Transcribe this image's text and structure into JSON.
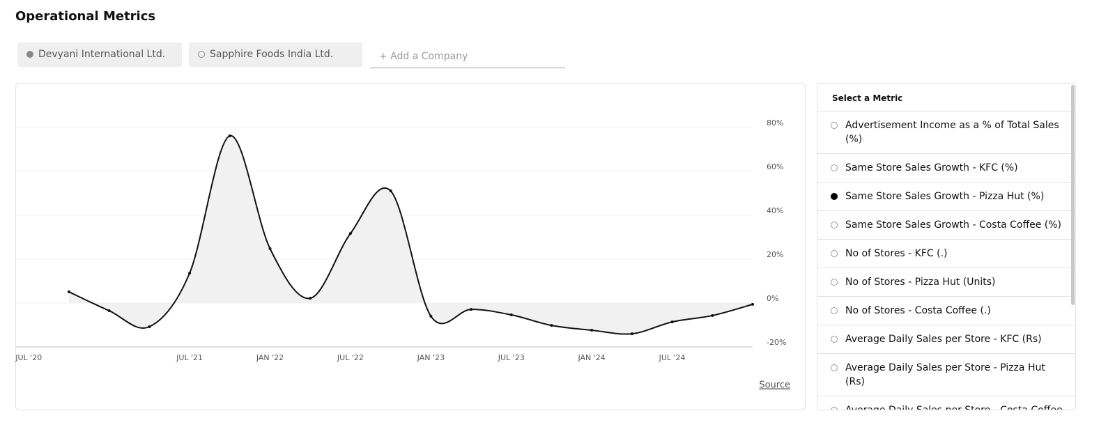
{
  "header": {
    "title": "Operational Metrics"
  },
  "companies": [
    {
      "name": "Devyani International Ltd.",
      "selected": true
    },
    {
      "name": "Sapphire Foods India Ltd.",
      "selected": false
    }
  ],
  "add_company": "+ Add a Company",
  "chart_data": {
    "type": "line",
    "color": "#111111",
    "area_color": "#f1f1f1",
    "x": [
      "2020-10",
      "2021-01",
      "2021-04",
      "2021-07",
      "2021-10",
      "2022-01",
      "2022-04",
      "2022-07",
      "2022-10",
      "2023-01",
      "2023-04",
      "2023-07",
      "2023-10",
      "2024-01",
      "2024-04",
      "2024-07",
      "2024-10",
      "2025-01"
    ],
    "values": [
      5.1,
      -3.5,
      -10.8,
      13.6,
      76.2,
      24.8,
      2.2,
      31.7,
      51.1,
      -6.0,
      -2.9,
      -5.4,
      -10.2,
      -12.4,
      -14.0,
      -8.6,
      -5.7,
      -0.6
    ],
    "xlim": [
      "2020-06",
      "2025-01"
    ],
    "xticks": [
      {
        "value": "2020-07",
        "label": "JUL '20"
      },
      {
        "value": "2021-07",
        "label": "JUL '21"
      },
      {
        "value": "2022-01",
        "label": "JAN '22"
      },
      {
        "value": "2022-07",
        "label": "JUL '22"
      },
      {
        "value": "2023-01",
        "label": "JAN '23"
      },
      {
        "value": "2023-07",
        "label": "JUL '23"
      },
      {
        "value": "2024-01",
        "label": "JAN '24"
      },
      {
        "value": "2024-07",
        "label": "JUL '24"
      }
    ],
    "ylim": [
      -20,
      80
    ],
    "yticks": [
      {
        "value": -20,
        "label": "-20%"
      },
      {
        "value": 0,
        "label": "0%"
      },
      {
        "value": 20,
        "label": "20%"
      },
      {
        "value": 40,
        "label": "40%"
      },
      {
        "value": 60,
        "label": "60%"
      },
      {
        "value": 80,
        "label": "80%"
      }
    ],
    "grid": true,
    "source": "Source"
  },
  "metric_panel": {
    "title": "Select a Metric",
    "selected": 2,
    "metrics": [
      "Advertisement Income as a % of Total Sales (%)",
      "Same Store Sales Growth - KFC (%)",
      "Same Store Sales Growth - Pizza Hut (%)",
      "Same Store Sales Growth - Costa Coffee (%)",
      "No of Stores - KFC (.)",
      "No of Stores - Pizza Hut (Units)",
      "No of Stores - Costa Coffee (.)",
      "Average Daily Sales per Store - KFC (Rs)",
      "Average Daily Sales per Store - Pizza Hut (Rs)",
      "Average Daily Sales per Store - Costa Coffee (Rs)"
    ]
  }
}
